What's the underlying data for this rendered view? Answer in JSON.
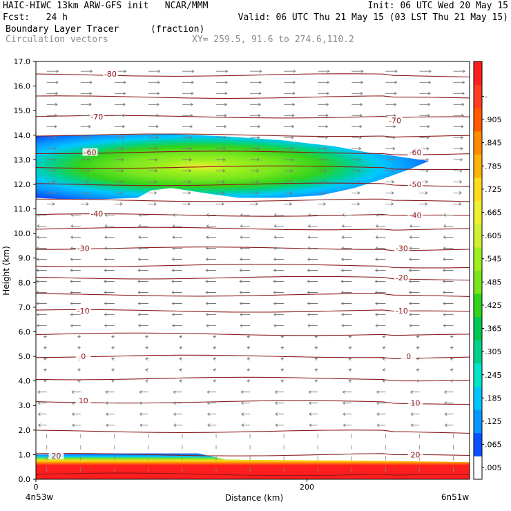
{
  "header": {
    "line1_left": "HAIC-HIWC 13km ARW-GFS init   NCAR/MMM",
    "line1_right": "Init: 06 UTC Wed 20 May 15",
    "line2_left": "Fcst:   24 h",
    "line2_right": "Valid: 06 UTC Thu 21 May 15 (03 LST Thu 21 May 15)",
    "field_name": "Boundary Layer Tracer",
    "field_units": "(fraction)",
    "vector_name": "Circulation vectors",
    "xy_text": "XY= 259.5, 91.6 to 274.6,110.2"
  },
  "chart_data": {
    "type": "heatmap",
    "xlabel": "Distance (km)",
    "ylabel": "Height (km)",
    "xlim": [
      0,
      320
    ],
    "ylim": [
      0,
      17
    ],
    "x_ticks": [
      0,
      200
    ],
    "x_end_labels": [
      "4n53w",
      "6n51w"
    ],
    "y_ticks": [
      "0.0",
      "1.0",
      "2.0",
      "3.0",
      "4.0",
      "5.0",
      "6.0",
      "7.0",
      "8.0",
      "9.0",
      "10.0",
      "11.0",
      "12.0",
      "13.0",
      "14.0",
      "15.0",
      "16.0",
      "17.0"
    ],
    "colorbar": {
      "labels": [
        ".005",
        ".065",
        ".125",
        ".185",
        ".245",
        ".305",
        ".365",
        ".425",
        ".485",
        ".545",
        ".605",
        ".665",
        ".725",
        ".785",
        ".845",
        ".905",
        "-"
      ],
      "colors": [
        "#ffffff",
        "#0a50ff",
        "#0a96ff",
        "#00c8ff",
        "#00e6c8",
        "#00d28c",
        "#00c850",
        "#32d21e",
        "#78e61e",
        "#a0f01e",
        "#d2f032",
        "#f0f032",
        "#ffdc1e",
        "#ffb40a",
        "#ff8c00",
        "#ff5a00",
        "#ff3c1e",
        "#ff1e1e"
      ]
    },
    "plume": {
      "description_values": "tracer fraction layer between about 11.4 and 14.0 km from 0 to ~290 km, peak ~0.5 near x 120-160 km, z 12.8 km; boundary layer tracer near 1.0 below 0.8 km",
      "upper_layer": {
        "x_start": 0,
        "x_end": 290,
        "z_bottom": 11.4,
        "z_top": 14.0,
        "peak": 0.5
      },
      "boundary_layer": {
        "z_top_left": 1.0,
        "z_top_right": 0.7,
        "value": 1.0
      }
    },
    "contours": {
      "name": "temperature",
      "labels": [
        {
          "text": "-80",
          "x": 55,
          "z": 16.5
        },
        {
          "text": "-70",
          "x": 45,
          "z": 14.75
        },
        {
          "text": "-70",
          "x": 265,
          "z": 14.6
        },
        {
          "text": "-60",
          "x": 40,
          "z": 13.3
        },
        {
          "text": "-60",
          "x": 280,
          "z": 13.3
        },
        {
          "text": "-50",
          "x": 280,
          "z": 12.0
        },
        {
          "text": "-40",
          "x": 45,
          "z": 10.8
        },
        {
          "text": "-40",
          "x": 280,
          "z": 10.75
        },
        {
          "text": "-30",
          "x": 35,
          "z": 9.4
        },
        {
          "text": "-30",
          "x": 270,
          "z": 9.4
        },
        {
          "text": "-20",
          "x": 270,
          "z": 8.2
        },
        {
          "text": "-10",
          "x": 35,
          "z": 6.85
        },
        {
          "text": "-10",
          "x": 270,
          "z": 6.85
        },
        {
          "text": "0",
          "x": 35,
          "z": 5.0
        },
        {
          "text": "0",
          "x": 275,
          "z": 5.0
        },
        {
          "text": "10",
          "x": 35,
          "z": 3.2
        },
        {
          "text": "10",
          "x": 280,
          "z": 3.1
        },
        {
          "text": "20",
          "x": 15,
          "z": 0.95
        },
        {
          "text": "20",
          "x": 280,
          "z": 1.0
        }
      ],
      "levels_z": [
        0.2,
        1.0,
        1.95,
        3.15,
        4.1,
        5.0,
        5.9,
        6.85,
        7.5,
        8.2,
        8.7,
        9.4,
        10.2,
        10.75,
        11.35,
        12.0,
        12.7,
        13.3,
        14.0,
        14.75,
        15.55,
        16.45
      ]
    }
  }
}
